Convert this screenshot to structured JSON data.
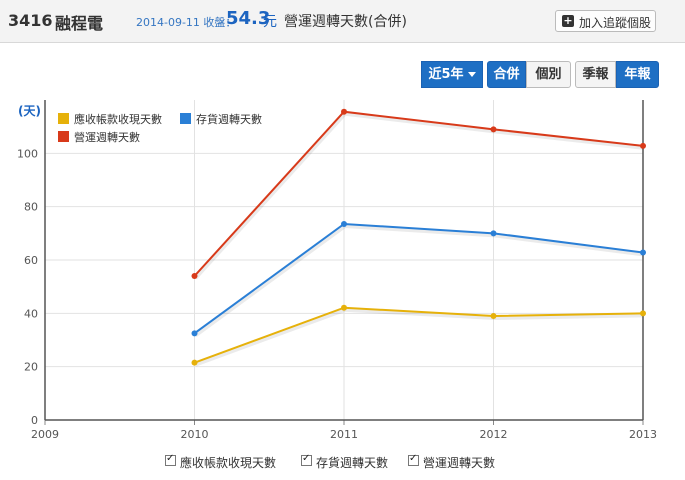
{
  "header": {
    "stock_id": "3416",
    "stock_name": "融程電",
    "quote_date": "2014-09-11 收盤：",
    "price": "54.3",
    "price_unit": "元",
    "metric_title": "營運週轉天數(合併)",
    "watch_button": "加入追蹤個股"
  },
  "controls": {
    "period": "近5年",
    "scope_consolidated": "合併",
    "scope_individual": "個別",
    "freq_quarterly": "季報",
    "freq_annual": "年報"
  },
  "chart_data": {
    "type": "line",
    "ylabel": "(天)",
    "x": [
      2009,
      2010,
      2011,
      2012,
      2013
    ],
    "xlim": [
      2009,
      2013
    ],
    "ylim": [
      0,
      120
    ],
    "yticks": [
      0,
      20,
      40,
      60,
      80,
      100
    ],
    "grid": true,
    "legend_position": "top-left",
    "series": [
      {
        "name": "應收帳款收現天數",
        "color": "#e6b10a",
        "x": [
          2010,
          2011,
          2012,
          2013
        ],
        "values": [
          21.5,
          42.1,
          39.0,
          40.0
        ]
      },
      {
        "name": "存貨週轉天數",
        "color": "#2a7fd6",
        "x": [
          2010,
          2011,
          2012,
          2013
        ],
        "values": [
          32.5,
          73.5,
          70.0,
          62.8
        ]
      },
      {
        "name": "營運週轉天數",
        "color": "#d83a1a",
        "x": [
          2010,
          2011,
          2012,
          2013
        ],
        "values": [
          54.0,
          115.6,
          109.0,
          102.8
        ]
      }
    ]
  },
  "bottom_legend": [
    "應收帳款收現天數",
    "存貨週轉天數",
    "營運週轉天數"
  ]
}
